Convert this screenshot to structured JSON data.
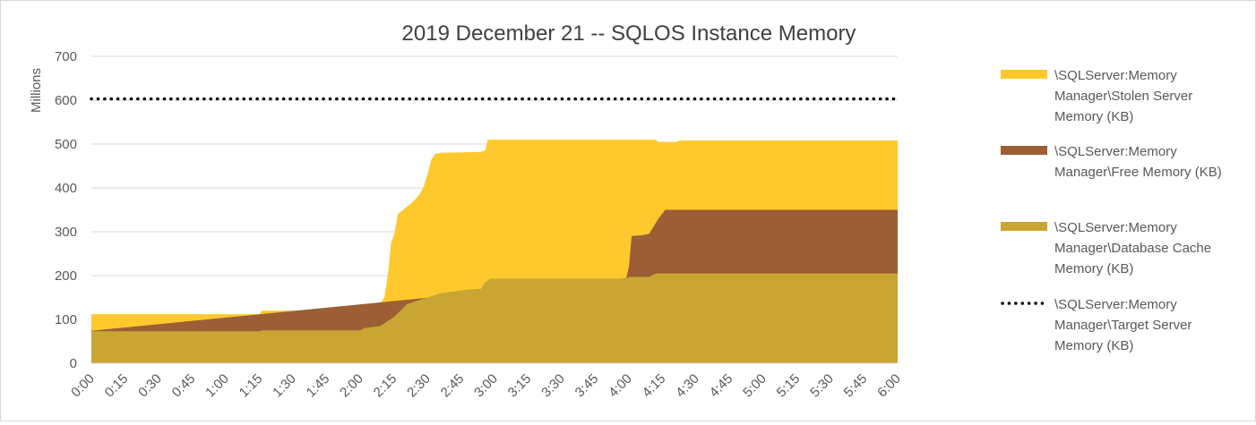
{
  "chart_data": {
    "type": "area",
    "title": "2019 December 21 -- SQLOS Instance Memory",
    "ylabel": "Millions",
    "xlabel": "",
    "ylim": [
      0,
      700
    ],
    "yticks": [
      "0",
      "100",
      "200",
      "300",
      "400",
      "500",
      "600",
      "700"
    ],
    "grid": true,
    "legend_position": "right",
    "x_tick_labels": [
      "0:00",
      "0:15",
      "0:30",
      "0:45",
      "1:00",
      "1:15",
      "1:30",
      "1:45",
      "2:00",
      "2:15",
      "2:30",
      "2:45",
      "3:00",
      "3:15",
      "3:30",
      "3:45",
      "4:00",
      "4:15",
      "4:30",
      "4:45",
      "5:00",
      "5:15",
      "5:30",
      "5:45",
      "6:00"
    ],
    "series": [
      {
        "name": "\\SQLServer:Memory Manager\\Stolen Server Memory (KB)",
        "kind": "stacked-area",
        "color": "#ffc92e",
        "legend_lines": [
          "\\SQLServer:Memory",
          "Manager\\Stolen Server",
          "Memory (KB)"
        ],
        "top_points": [
          [
            0,
            112
          ],
          [
            1.25,
            112
          ],
          [
            1.27,
            120
          ],
          [
            2.0,
            120
          ],
          [
            2.02,
            128
          ],
          [
            2.1,
            130
          ],
          [
            2.15,
            135
          ],
          [
            2.18,
            150
          ],
          [
            2.21,
            210
          ],
          [
            2.23,
            275
          ],
          [
            2.25,
            290
          ],
          [
            2.27,
            320
          ],
          [
            2.28,
            340
          ],
          [
            2.32,
            350
          ],
          [
            2.38,
            365
          ],
          [
            2.43,
            380
          ],
          [
            2.47,
            400
          ],
          [
            2.5,
            430
          ],
          [
            2.53,
            465
          ],
          [
            2.56,
            478
          ],
          [
            2.6,
            480
          ],
          [
            2.9,
            482
          ],
          [
            2.93,
            485
          ],
          [
            2.95,
            510
          ],
          [
            4.2,
            510
          ],
          [
            4.22,
            505
          ],
          [
            4.35,
            505
          ],
          [
            4.38,
            508
          ],
          [
            6.0,
            508
          ]
        ]
      },
      {
        "name": "\\SQLServer:Memory Manager\\Free Memory (KB)",
        "kind": "stacked-area",
        "color": "#9c5f35",
        "legend_lines": [
          "\\SQLServer:Memory",
          "Manager\\Free Memory (KB)"
        ],
        "top_points": [
          [
            0,
            74
          ],
          [
            3.98,
            194
          ],
          [
            4.0,
            220
          ],
          [
            4.02,
            290
          ],
          [
            4.1,
            292
          ],
          [
            4.15,
            295
          ],
          [
            4.18,
            310
          ],
          [
            4.22,
            330
          ],
          [
            4.27,
            350
          ],
          [
            4.35,
            350
          ],
          [
            6.0,
            350
          ]
        ]
      },
      {
        "name": "\\SQLServer:Memory Manager\\Database Cache Memory (KB)",
        "kind": "area",
        "color": "#c9a634",
        "legend_lines": [
          "\\SQLServer:Memory",
          "Manager\\Database Cache",
          "Memory (KB)"
        ],
        "top_points": [
          [
            0,
            73
          ],
          [
            1.25,
            73
          ],
          [
            1.27,
            75
          ],
          [
            2.0,
            75
          ],
          [
            2.03,
            80
          ],
          [
            2.15,
            85
          ],
          [
            2.2,
            95
          ],
          [
            2.25,
            105
          ],
          [
            2.3,
            120
          ],
          [
            2.35,
            135
          ],
          [
            2.4,
            140
          ],
          [
            2.5,
            150
          ],
          [
            2.6,
            160
          ],
          [
            2.8,
            168
          ],
          [
            2.9,
            170
          ],
          [
            2.93,
            185
          ],
          [
            2.97,
            193
          ],
          [
            3.1,
            193
          ],
          [
            3.98,
            193
          ],
          [
            4.0,
            197
          ],
          [
            4.15,
            197
          ],
          [
            4.2,
            205
          ],
          [
            4.3,
            205
          ],
          [
            6.0,
            205
          ]
        ]
      },
      {
        "name": "\\SQLServer:Memory Manager\\Target Server Memory (KB)",
        "kind": "dotted-line",
        "color": "#000000",
        "legend_lines": [
          "\\SQLServer:Memory",
          "Manager\\Target Server",
          "Memory (KB)"
        ],
        "values": [
          [
            0,
            603
          ],
          [
            6.0,
            603
          ]
        ]
      }
    ]
  }
}
